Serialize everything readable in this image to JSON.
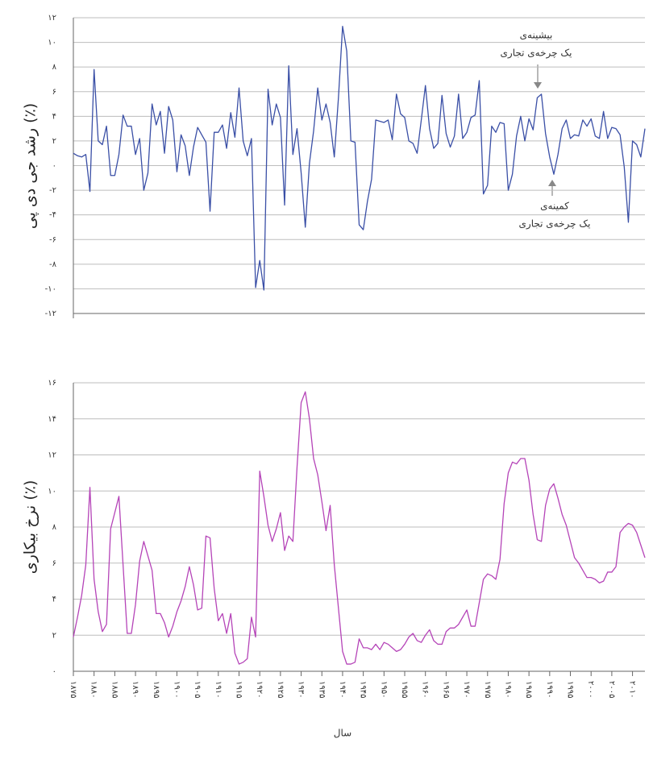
{
  "chart_data": [
    {
      "type": "line",
      "ylabel": "رشد جی دی پی (٪)",
      "color": "#3a4fa6",
      "grid": true,
      "x": [
        1875,
        1876,
        1877,
        1878,
        1879,
        1880,
        1881,
        1882,
        1883,
        1884,
        1885,
        1886,
        1887,
        1888,
        1889,
        1890,
        1891,
        1892,
        1893,
        1894,
        1895,
        1896,
        1897,
        1898,
        1899,
        1900,
        1901,
        1902,
        1903,
        1904,
        1905,
        1906,
        1907,
        1908,
        1909,
        1910,
        1911,
        1912,
        1913,
        1914,
        1915,
        1916,
        1917,
        1918,
        1919,
        1920,
        1921,
        1922,
        1923,
        1924,
        1925,
        1926,
        1927,
        1928,
        1929,
        1930,
        1931,
        1932,
        1933,
        1934,
        1935,
        1936,
        1937,
        1938,
        1939,
        1940,
        1941,
        1942,
        1943,
        1944,
        1945,
        1946,
        1947,
        1948,
        1949,
        1950,
        1951,
        1952,
        1953,
        1954,
        1955,
        1956,
        1957,
        1958,
        1959,
        1960,
        1961,
        1962,
        1963,
        1964,
        1965,
        1966,
        1967,
        1968,
        1969,
        1970,
        1971,
        1972,
        1973,
        1974,
        1975,
        1976,
        1977,
        1978,
        1979,
        1980,
        1981,
        1982,
        1983,
        1984,
        1985,
        1986,
        1987,
        1988,
        1989,
        1990,
        1991,
        1992,
        1993,
        1994,
        1995,
        1996,
        1997,
        1998,
        1999,
        2000,
        2001,
        2002,
        2003,
        2004,
        2005,
        2006,
        2007,
        2008,
        2009,
        2010,
        2011,
        2012,
        2013
      ],
      "values": [
        1.0,
        0.8,
        0.7,
        0.9,
        -2.1,
        7.8,
        2.0,
        1.7,
        3.2,
        -0.8,
        -0.8,
        0.9,
        4.1,
        3.2,
        3.2,
        0.9,
        2.2,
        -2.0,
        -0.6,
        5.0,
        3.3,
        4.4,
        1.0,
        4.8,
        3.7,
        -0.5,
        2.5,
        1.6,
        -0.8,
        1.5,
        3.1,
        2.5,
        1.9,
        -3.7,
        2.7,
        2.7,
        3.3,
        1.4,
        4.3,
        2.3,
        6.3,
        2.0,
        0.8,
        2.2,
        -9.9,
        -7.7,
        -10.1,
        6.2,
        3.3,
        5.0,
        3.9,
        -3.2,
        8.1,
        0.9,
        3.0,
        -0.6,
        -5.0,
        0.2,
        2.8,
        6.3,
        3.7,
        5.0,
        3.5,
        0.7,
        5.5,
        11.3,
        9.3,
        2.0,
        1.9,
        -4.8,
        -5.2,
        -2.9,
        -1.1,
        3.7,
        3.6,
        3.5,
        3.7,
        2.1,
        5.8,
        4.2,
        3.9,
        2.0,
        1.8,
        1.0,
        3.7,
        6.5,
        3.0,
        1.4,
        1.8,
        5.7,
        2.6,
        1.5,
        2.4,
        5.8,
        2.2,
        2.7,
        3.9,
        4.1,
        6.9,
        -2.3,
        -1.6,
        3.2,
        2.7,
        3.5,
        3.4,
        -2.0,
        -0.7,
        2.4,
        4.0,
        2.0,
        3.8,
        2.9,
        5.5,
        5.8,
        2.6,
        0.7,
        -0.7,
        0.9,
        3.0,
        3.7,
        2.2,
        2.5,
        2.4,
        3.7,
        3.2,
        3.8,
        2.4,
        2.2,
        4.4,
        2.2,
        3.1,
        3.0,
        2.5,
        -0.1,
        -4.6,
        2.0,
        1.7,
        0.7,
        3.0
      ],
      "xlim": [
        1875,
        2013
      ],
      "ylim": [
        -12,
        12
      ],
      "yticks": [
        {
          "value": -12,
          "label": "-۱۲"
        },
        {
          "value": -10,
          "label": "-۱۰"
        },
        {
          "value": -8,
          "label": "-۸"
        },
        {
          "value": -6,
          "label": "-۶"
        },
        {
          "value": -4,
          "label": "-۴"
        },
        {
          "value": -2,
          "label": "-۲"
        },
        {
          "value": 0,
          "label": "۰"
        },
        {
          "value": 2,
          "label": "۲"
        },
        {
          "value": 4,
          "label": "۴"
        },
        {
          "value": 6,
          "label": "۶"
        },
        {
          "value": 8,
          "label": "۸"
        },
        {
          "value": 10,
          "label": "۱۰"
        },
        {
          "value": 12,
          "label": "۱۲"
        }
      ],
      "annotations": [
        {
          "lines": [
            "بیشینه‌ی",
            "یک چرخه‌ی تجاری"
          ]
        },
        {
          "lines": [
            "کمینه‌ی",
            "یک چرخه‌ی تجاری"
          ]
        }
      ]
    },
    {
      "type": "line",
      "ylabel": "نرخ بیکاری (٪)",
      "xlabel": "سال",
      "color": "#b544b8",
      "grid": true,
      "x": [
        1875,
        1876,
        1877,
        1878,
        1879,
        1880,
        1881,
        1882,
        1883,
        1884,
        1885,
        1886,
        1887,
        1888,
        1889,
        1890,
        1891,
        1892,
        1893,
        1894,
        1895,
        1896,
        1897,
        1898,
        1899,
        1900,
        1901,
        1902,
        1903,
        1904,
        1905,
        1906,
        1907,
        1908,
        1909,
        1910,
        1911,
        1912,
        1913,
        1914,
        1915,
        1916,
        1917,
        1918,
        1919,
        1920,
        1921,
        1922,
        1923,
        1924,
        1925,
        1926,
        1927,
        1928,
        1929,
        1930,
        1931,
        1932,
        1933,
        1934,
        1935,
        1936,
        1937,
        1938,
        1939,
        1940,
        1941,
        1942,
        1943,
        1944,
        1945,
        1946,
        1947,
        1948,
        1949,
        1950,
        1951,
        1952,
        1953,
        1954,
        1955,
        1956,
        1957,
        1958,
        1959,
        1960,
        1961,
        1962,
        1963,
        1964,
        1965,
        1966,
        1967,
        1968,
        1969,
        1970,
        1971,
        1972,
        1973,
        1974,
        1975,
        1976,
        1977,
        1978,
        1979,
        1980,
        1981,
        1982,
        1983,
        1984,
        1985,
        1986,
        1987,
        1988,
        1989,
        1990,
        1991,
        1992,
        1993,
        1994,
        1995,
        1996,
        1997,
        1998,
        1999,
        2000,
        2001,
        2002,
        2003,
        2004,
        2005,
        2006,
        2007,
        2008,
        2009,
        2010,
        2011,
        2012,
        2013
      ],
      "values": [
        1.9,
        3.0,
        4.2,
        5.9,
        10.2,
        5.1,
        3.3,
        2.2,
        2.6,
        7.9,
        8.8,
        9.7,
        5.9,
        2.1,
        2.1,
        3.7,
        6.1,
        7.2,
        6.4,
        5.6,
        3.2,
        3.2,
        2.7,
        1.9,
        2.5,
        3.3,
        3.9,
        4.7,
        5.8,
        4.8,
        3.4,
        3.5,
        7.5,
        7.4,
        4.6,
        2.8,
        3.2,
        2.1,
        3.2,
        1.0,
        0.4,
        0.5,
        0.7,
        3.0,
        1.9,
        11.1,
        9.7,
        8.1,
        7.2,
        7.9,
        8.8,
        6.7,
        7.5,
        7.2,
        11.3,
        14.9,
        15.5,
        14.0,
        11.8,
        10.9,
        9.4,
        7.8,
        9.2,
        5.9,
        3.5,
        1.1,
        0.4,
        0.4,
        0.5,
        1.8,
        1.3,
        1.3,
        1.2,
        1.5,
        1.2,
        1.6,
        1.5,
        1.3,
        1.1,
        1.2,
        1.5,
        1.9,
        2.1,
        1.7,
        1.6,
        2.0,
        2.3,
        1.7,
        1.5,
        1.5,
        2.2,
        2.4,
        2.4,
        2.6,
        3.0,
        3.4,
        2.5,
        2.5,
        3.8,
        5.1,
        5.4,
        5.3,
        5.1,
        6.2,
        9.3,
        11.0,
        11.6,
        11.5,
        11.8,
        11.8,
        10.6,
        8.7,
        7.3,
        7.2,
        9.2,
        10.1,
        10.4,
        9.6,
        8.7,
        8.1,
        7.2,
        6.3,
        6.0,
        5.6,
        5.2,
        5.2,
        5.1,
        4.9,
        5.0,
        5.5,
        5.5,
        5.8,
        7.7,
        8.0,
        8.2,
        8.1,
        7.7,
        7.0,
        6.3
      ],
      "xlim": [
        1875,
        2013
      ],
      "ylim": [
        0,
        16
      ],
      "yticks": [
        {
          "value": 0,
          "label": "۰"
        },
        {
          "value": 2,
          "label": "۲"
        },
        {
          "value": 4,
          "label": "۴"
        },
        {
          "value": 6,
          "label": "۶"
        },
        {
          "value": 8,
          "label": "۸"
        },
        {
          "value": 10,
          "label": "۱۰"
        },
        {
          "value": 12,
          "label": "۱۲"
        },
        {
          "value": 14,
          "label": "۱۴"
        },
        {
          "value": 16,
          "label": "۱۶"
        }
      ],
      "xticks": [
        {
          "value": 1875,
          "label": "۱۸۷۵"
        },
        {
          "value": 1880,
          "label": "۱۸۸۰"
        },
        {
          "value": 1885,
          "label": "۱۸۸۵"
        },
        {
          "value": 1890,
          "label": "۱۸۹۰"
        },
        {
          "value": 1895,
          "label": "۱۸۹۵"
        },
        {
          "value": 1900,
          "label": "۱۹۰۰"
        },
        {
          "value": 1905,
          "label": "۱۹۰۵"
        },
        {
          "value": 1910,
          "label": "۱۹۱۰"
        },
        {
          "value": 1915,
          "label": "۱۹۱۵"
        },
        {
          "value": 1920,
          "label": "۱۹۲۰"
        },
        {
          "value": 1925,
          "label": "۱۹۲۵"
        },
        {
          "value": 1930,
          "label": "۱۹۳۰"
        },
        {
          "value": 1935,
          "label": "۱۹۳۵"
        },
        {
          "value": 1940,
          "label": "۱۹۴۰"
        },
        {
          "value": 1945,
          "label": "۱۹۴۵"
        },
        {
          "value": 1950,
          "label": "۱۹۵۰"
        },
        {
          "value": 1955,
          "label": "۱۹۵۵"
        },
        {
          "value": 1960,
          "label": "۱۹۶۰"
        },
        {
          "value": 1965,
          "label": "۱۹۶۵"
        },
        {
          "value": 1970,
          "label": "۱۹۷۰"
        },
        {
          "value": 1975,
          "label": "۱۹۷۵"
        },
        {
          "value": 1980,
          "label": "۱۹۸۰"
        },
        {
          "value": 1985,
          "label": "۱۹۸۵"
        },
        {
          "value": 1990,
          "label": "۱۹۹۰"
        },
        {
          "value": 1995,
          "label": "۱۹۹۵"
        },
        {
          "value": 2000,
          "label": "۲۰۰۰"
        },
        {
          "value": 2005,
          "label": "۲۰۰۵"
        },
        {
          "value": 2010,
          "label": "۲۰۱۰"
        }
      ]
    }
  ]
}
